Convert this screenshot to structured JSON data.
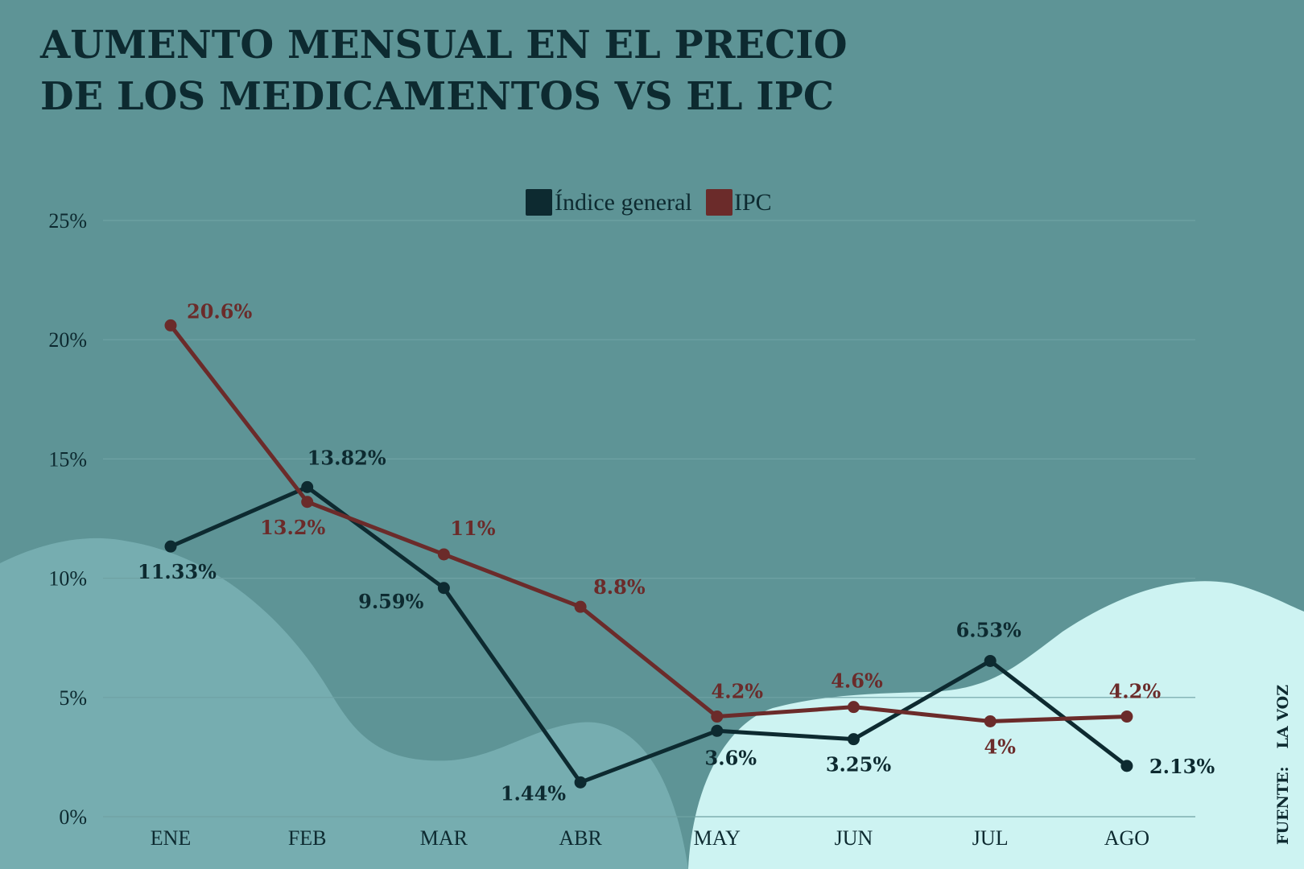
{
  "colors": {
    "background": "#5e9496",
    "blob_left": "#76adb0",
    "blob_right": "#cdf3f2",
    "gridline": "#6fa2a4",
    "text": "#0d2a30"
  },
  "title_lines": [
    "AUMENTO MENSUAL EN EL PRECIO",
    "DE LOS MEDICAMENTOS VS EL IPC"
  ],
  "source": {
    "label": "FUENTE:",
    "name": "LA VOZ"
  },
  "chart_data": {
    "type": "line",
    "title": "AUMENTO MENSUAL EN EL PRECIO DE LOS MEDICAMENTOS VS EL IPC",
    "categories": [
      "ENE",
      "FEB",
      "MAR",
      "ABR",
      "MAY",
      "JUN",
      "JUL",
      "AGO"
    ],
    "ylim": [
      0,
      25
    ],
    "yticks": [
      0,
      5,
      10,
      15,
      20,
      25
    ],
    "ytick_labels": [
      "0%",
      "5%",
      "10%",
      "15%",
      "20%",
      "25%"
    ],
    "grid": true,
    "legend_position": "top-center",
    "series": [
      {
        "name": "Índice general",
        "color": "#0d2a30",
        "values": [
          11.33,
          13.82,
          9.59,
          1.44,
          3.6,
          3.25,
          6.53,
          2.13
        ],
        "labels": [
          "11.33%",
          "13.82%",
          "9.59%",
          "1.44%",
          "3.6%",
          "3.25%",
          "6.53%",
          "2.13%"
        ]
      },
      {
        "name": "IPC",
        "color": "#6b2b2a",
        "values": [
          20.6,
          13.2,
          11,
          8.8,
          4.2,
          4.6,
          4,
          4.2
        ],
        "labels": [
          "20.6%",
          "13.2%",
          "11%",
          "8.8%",
          "4.2%",
          "4.6%",
          "4%",
          "4.2%"
        ]
      }
    ]
  }
}
